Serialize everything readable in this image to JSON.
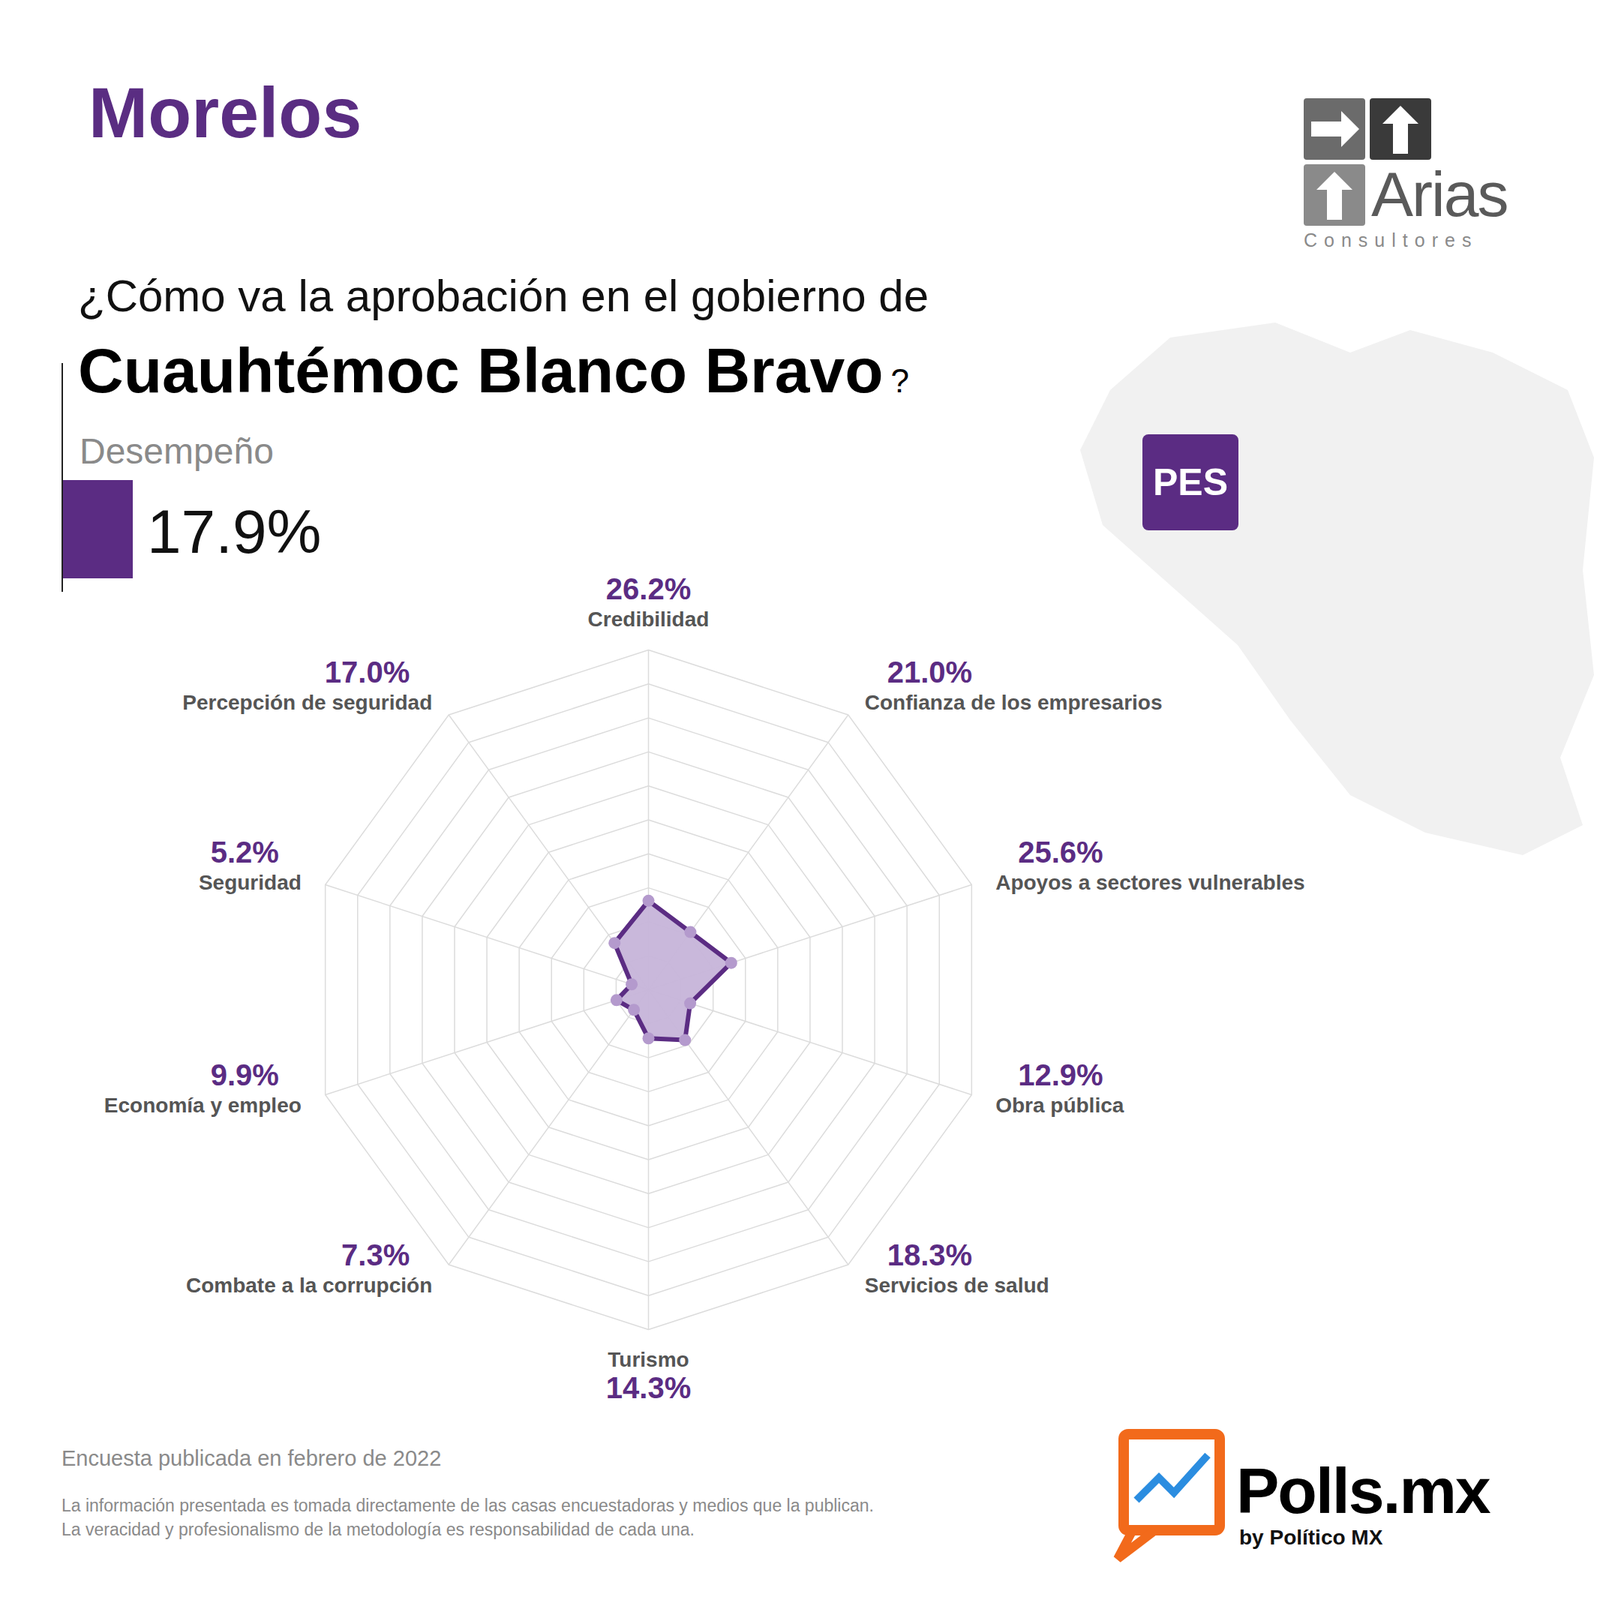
{
  "page": {
    "region": "Morelos",
    "pollster": {
      "name": "Arias",
      "tagline": "Consultores"
    },
    "question": "¿Cómo va la aprobación en el gobierno de",
    "governor": "Cuauhtémoc Blanco Bravo",
    "question_end": "?",
    "party": "PES",
    "overall": {
      "label": "Desempeño",
      "value": 17.9,
      "value_label": "17.9%"
    },
    "note": "Encuesta publicada en febrero de 2022",
    "disclaimer": [
      "La información presentada es tomada directamente de las casas encuestadoras y medios que la publican.",
      "La veracidad y profesionalismo de la metodología es responsabilidad de cada una."
    ],
    "brand": {
      "name": "Polls.mx",
      "by": "by Político MX"
    }
  },
  "chart_data": {
    "type": "radar",
    "categories": [
      "Credibilidad",
      "Confianza de los empresarios",
      "Apoyos a sectores vulnerables",
      "Obra pública",
      "Servicios de salud",
      "Turismo",
      "Combate a la corrupción",
      "Economía y empleo",
      "Seguridad",
      "Percepción de seguridad"
    ],
    "values": [
      26.2,
      21.0,
      25.6,
      12.9,
      18.3,
      14.3,
      7.3,
      9.9,
      5.2,
      17.0
    ],
    "value_labels": [
      "26.2%",
      "21.0%",
      "25.6%",
      "12.9%",
      "18.3%",
      "14.3%",
      "7.3%",
      "9.9%",
      "5.2%",
      "17.0%"
    ],
    "color": "#5b2c83",
    "rlim": [
      0,
      100
    ],
    "rticks": [
      10,
      20,
      30,
      40,
      50,
      60,
      70,
      80,
      90,
      100
    ],
    "grid": true,
    "tick_labels": false,
    "data_labels": true
  }
}
